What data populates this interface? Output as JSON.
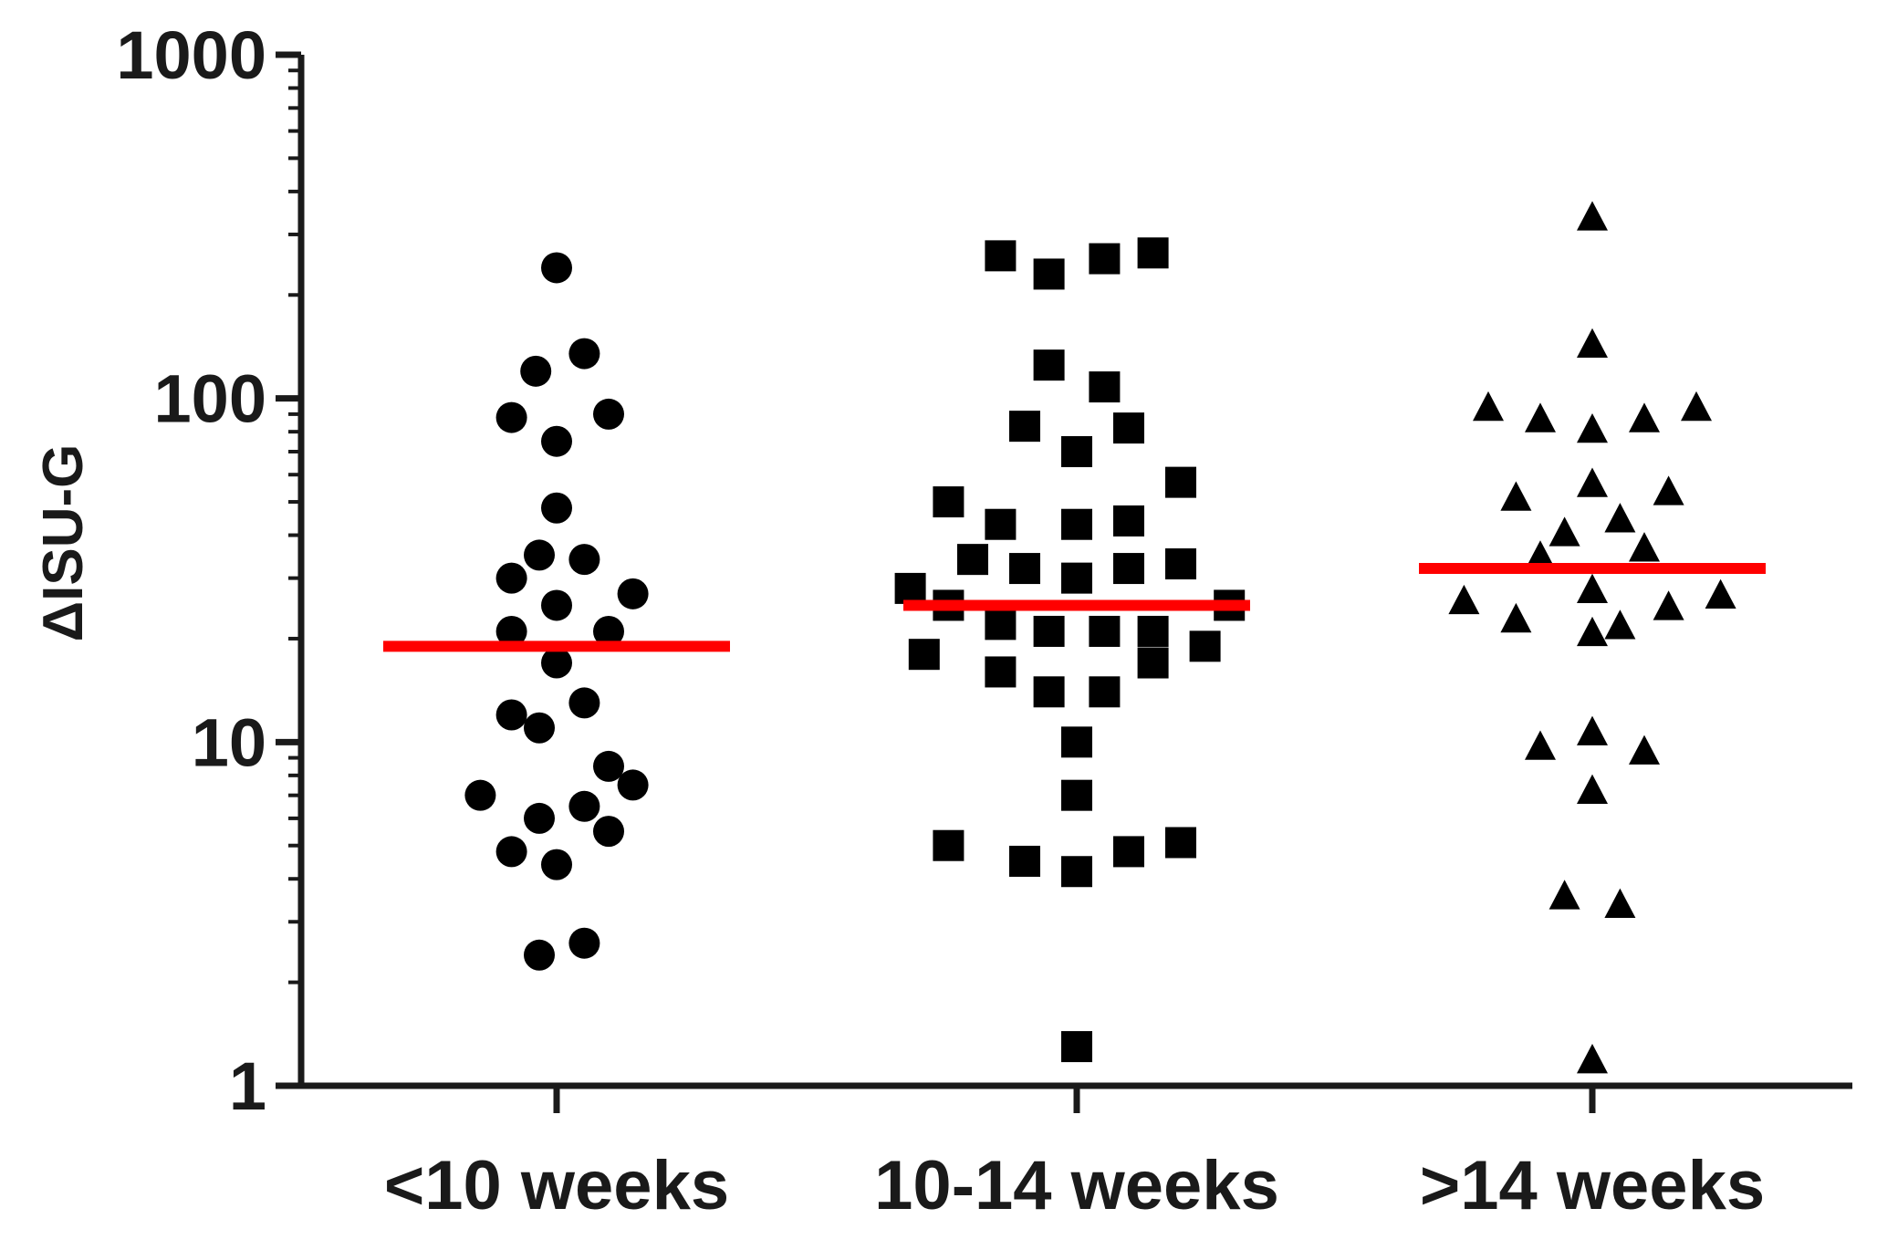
{
  "chart_data": {
    "type": "scatter",
    "title": "",
    "xlabel": "",
    "ylabel": "ΔISU-G",
    "yscale": "log",
    "ylim": [
      1,
      1000
    ],
    "yticks": [
      1,
      10,
      100,
      1000
    ],
    "ytick_labels": [
      "1",
      "10",
      "100",
      "1000"
    ],
    "grid": false,
    "categories": [
      "<10 weeks",
      "10-14 weeks",
      ">14 weeks"
    ],
    "series": [
      {
        "category": "<10 weeks",
        "marker": "circle",
        "color": "#000000",
        "median": 19,
        "points": [
          {
            "offset": 0.0,
            "value": 240
          },
          {
            "offset": -0.06,
            "value": 120
          },
          {
            "offset": 0.08,
            "value": 135
          },
          {
            "offset": -0.13,
            "value": 88
          },
          {
            "offset": 0.15,
            "value": 90
          },
          {
            "offset": 0.0,
            "value": 75
          },
          {
            "offset": 0.0,
            "value": 48
          },
          {
            "offset": -0.05,
            "value": 35
          },
          {
            "offset": 0.08,
            "value": 34
          },
          {
            "offset": -0.13,
            "value": 30
          },
          {
            "offset": 0.22,
            "value": 27
          },
          {
            "offset": 0.0,
            "value": 25
          },
          {
            "offset": -0.13,
            "value": 21
          },
          {
            "offset": 0.15,
            "value": 21
          },
          {
            "offset": 0.0,
            "value": 17
          },
          {
            "offset": 0.08,
            "value": 13
          },
          {
            "offset": -0.13,
            "value": 12
          },
          {
            "offset": -0.05,
            "value": 11
          },
          {
            "offset": 0.15,
            "value": 8.5
          },
          {
            "offset": 0.22,
            "value": 7.5
          },
          {
            "offset": -0.22,
            "value": 7
          },
          {
            "offset": 0.08,
            "value": 6.5
          },
          {
            "offset": -0.05,
            "value": 6
          },
          {
            "offset": 0.15,
            "value": 5.5
          },
          {
            "offset": -0.13,
            "value": 4.8
          },
          {
            "offset": 0.0,
            "value": 4.4
          },
          {
            "offset": 0.08,
            "value": 2.6
          },
          {
            "offset": -0.05,
            "value": 2.4
          }
        ]
      },
      {
        "category": "10-14 weeks",
        "marker": "square",
        "color": "#000000",
        "median": 25,
        "points": [
          {
            "offset": -0.22,
            "value": 260
          },
          {
            "offset": -0.08,
            "value": 230
          },
          {
            "offset": 0.08,
            "value": 255
          },
          {
            "offset": 0.22,
            "value": 265
          },
          {
            "offset": -0.08,
            "value": 125
          },
          {
            "offset": 0.08,
            "value": 108
          },
          {
            "offset": -0.15,
            "value": 83
          },
          {
            "offset": 0.15,
            "value": 82
          },
          {
            "offset": 0.0,
            "value": 70
          },
          {
            "offset": 0.3,
            "value": 57
          },
          {
            "offset": -0.37,
            "value": 50
          },
          {
            "offset": -0.22,
            "value": 43
          },
          {
            "offset": 0.0,
            "value": 43
          },
          {
            "offset": 0.15,
            "value": 44
          },
          {
            "offset": -0.3,
            "value": 34
          },
          {
            "offset": -0.15,
            "value": 32
          },
          {
            "offset": 0.0,
            "value": 30
          },
          {
            "offset": 0.15,
            "value": 32
          },
          {
            "offset": 0.3,
            "value": 33
          },
          {
            "offset": -0.48,
            "value": 28
          },
          {
            "offset": -0.37,
            "value": 25
          },
          {
            "offset": 0.44,
            "value": 25
          },
          {
            "offset": -0.22,
            "value": 22
          },
          {
            "offset": -0.08,
            "value": 21
          },
          {
            "offset": 0.08,
            "value": 21
          },
          {
            "offset": 0.22,
            "value": 21
          },
          {
            "offset": 0.37,
            "value": 19
          },
          {
            "offset": -0.44,
            "value": 18
          },
          {
            "offset": 0.22,
            "value": 17
          },
          {
            "offset": -0.22,
            "value": 16
          },
          {
            "offset": -0.08,
            "value": 14
          },
          {
            "offset": 0.08,
            "value": 14
          },
          {
            "offset": 0.0,
            "value": 10
          },
          {
            "offset": 0.0,
            "value": 7
          },
          {
            "offset": -0.37,
            "value": 5
          },
          {
            "offset": 0.3,
            "value": 5.1
          },
          {
            "offset": -0.15,
            "value": 4.5
          },
          {
            "offset": 0.15,
            "value": 4.8
          },
          {
            "offset": 0.0,
            "value": 4.2
          },
          {
            "offset": 0.0,
            "value": 1.3
          }
        ]
      },
      {
        "category": ">14 weeks",
        "marker": "triangle",
        "color": "#000000",
        "median": 32,
        "points": [
          {
            "offset": 0.0,
            "value": 340
          },
          {
            "offset": 0.0,
            "value": 145
          },
          {
            "offset": -0.3,
            "value": 95
          },
          {
            "offset": -0.15,
            "value": 88
          },
          {
            "offset": 0.0,
            "value": 82
          },
          {
            "offset": 0.15,
            "value": 88
          },
          {
            "offset": 0.3,
            "value": 95
          },
          {
            "offset": 0.0,
            "value": 57
          },
          {
            "offset": -0.22,
            "value": 52
          },
          {
            "offset": 0.22,
            "value": 54
          },
          {
            "offset": 0.08,
            "value": 45
          },
          {
            "offset": -0.08,
            "value": 41
          },
          {
            "offset": -0.15,
            "value": 35
          },
          {
            "offset": 0.15,
            "value": 37
          },
          {
            "offset": 0.0,
            "value": 28
          },
          {
            "offset": -0.37,
            "value": 26
          },
          {
            "offset": 0.22,
            "value": 25
          },
          {
            "offset": 0.37,
            "value": 27
          },
          {
            "offset": -0.22,
            "value": 23
          },
          {
            "offset": 0.08,
            "value": 22
          },
          {
            "offset": 0.0,
            "value": 21
          },
          {
            "offset": -0.15,
            "value": 9.8
          },
          {
            "offset": 0.0,
            "value": 10.8
          },
          {
            "offset": 0.15,
            "value": 9.5
          },
          {
            "offset": 0.0,
            "value": 7.3
          },
          {
            "offset": -0.08,
            "value": 3.6
          },
          {
            "offset": 0.08,
            "value": 3.4
          },
          {
            "offset": 0.0,
            "value": 1.2
          }
        ]
      }
    ],
    "median_color": "#ff0000"
  }
}
